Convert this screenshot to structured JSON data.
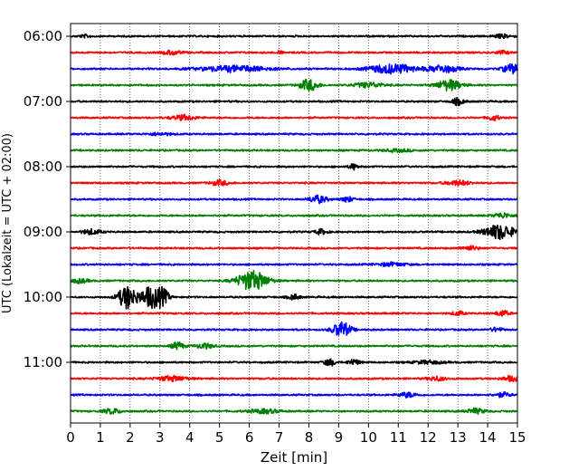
{
  "chart_data": {
    "type": "line",
    "xlabel": "Zeit  [min]",
    "ylabel": "UTC (Lokalzeit = UTC + 02:00)",
    "xlim": [
      0,
      15
    ],
    "x_ticks": [
      "0",
      "1",
      "2",
      "3",
      "4",
      "5",
      "6",
      "7",
      "8",
      "9",
      "10",
      "11",
      "12",
      "13",
      "14",
      "15"
    ],
    "y_ticks": [
      "06:00",
      "07:00",
      "08:00",
      "09:00",
      "10:00",
      "11:00"
    ],
    "grid": "vertical dotted at each minute",
    "start_time": "06:00",
    "trace_interval_min": 15,
    "color_cycle": [
      "#000000",
      "#ff0000",
      "#0000ff",
      "#008000"
    ],
    "traces": [
      {
        "time": "06:00",
        "color": "#000000",
        "events": [
          {
            "t": 0.5,
            "a": 0.15,
            "w": 0.2
          },
          {
            "t": 14.5,
            "a": 0.2,
            "w": 0.3
          }
        ]
      },
      {
        "time": "06:15",
        "color": "#ff0000",
        "events": [
          {
            "t": 3.4,
            "a": 0.25,
            "w": 0.3
          },
          {
            "t": 7.0,
            "a": 0.2,
            "w": 0.1
          },
          {
            "t": 14.5,
            "a": 0.2,
            "w": 0.2
          }
        ]
      },
      {
        "time": "06:30",
        "color": "#0000ff",
        "events": [
          {
            "t": 5.5,
            "a": 0.35,
            "w": 1.2
          },
          {
            "t": 10.8,
            "a": 0.55,
            "w": 0.8
          },
          {
            "t": 12.5,
            "a": 0.45,
            "w": 0.5
          },
          {
            "t": 14.8,
            "a": 0.55,
            "w": 0.3
          }
        ]
      },
      {
        "time": "06:45",
        "color": "#008000",
        "events": [
          {
            "t": 8.0,
            "a": 0.7,
            "w": 0.3
          },
          {
            "t": 10.0,
            "a": 0.3,
            "w": 0.5
          },
          {
            "t": 12.7,
            "a": 0.65,
            "w": 0.4
          }
        ]
      },
      {
        "time": "07:00",
        "color": "#000000",
        "events": [
          {
            "t": 13.0,
            "a": 0.4,
            "w": 0.2
          }
        ]
      },
      {
        "time": "07:15",
        "color": "#ff0000",
        "events": [
          {
            "t": 3.8,
            "a": 0.3,
            "w": 0.4
          },
          {
            "t": 14.2,
            "a": 0.3,
            "w": 0.2
          }
        ]
      },
      {
        "time": "07:30",
        "color": "#0000ff",
        "events": [
          {
            "t": 3.0,
            "a": 0.15,
            "w": 0.4
          }
        ]
      },
      {
        "time": "07:45",
        "color": "#008000",
        "events": [
          {
            "t": 11.0,
            "a": 0.15,
            "w": 0.5
          }
        ]
      },
      {
        "time": "08:00",
        "color": "#000000",
        "events": [
          {
            "t": 9.5,
            "a": 0.35,
            "w": 0.15
          }
        ]
      },
      {
        "time": "08:15",
        "color": "#ff0000",
        "events": [
          {
            "t": 5.0,
            "a": 0.3,
            "w": 0.3
          },
          {
            "t": 13.0,
            "a": 0.3,
            "w": 0.4
          }
        ]
      },
      {
        "time": "08:30",
        "color": "#0000ff",
        "events": [
          {
            "t": 8.3,
            "a": 0.45,
            "w": 0.3
          },
          {
            "t": 9.3,
            "a": 0.3,
            "w": 0.2
          }
        ]
      },
      {
        "time": "08:45",
        "color": "#008000",
        "events": [
          {
            "t": 14.5,
            "a": 0.3,
            "w": 0.3
          }
        ]
      },
      {
        "time": "09:00",
        "color": "#000000",
        "events": [
          {
            "t": 0.7,
            "a": 0.3,
            "w": 0.3
          },
          {
            "t": 8.4,
            "a": 0.3,
            "w": 0.2
          },
          {
            "t": 14.4,
            "a": 0.9,
            "w": 0.5
          }
        ]
      },
      {
        "time": "09:15",
        "color": "#ff0000",
        "events": [
          {
            "t": 13.4,
            "a": 0.25,
            "w": 0.3
          }
        ]
      },
      {
        "time": "09:30",
        "color": "#0000ff",
        "events": [
          {
            "t": 10.8,
            "a": 0.2,
            "w": 0.5
          }
        ]
      },
      {
        "time": "09:45",
        "color": "#008000",
        "events": [
          {
            "t": 0.3,
            "a": 0.25,
            "w": 0.3
          },
          {
            "t": 6.1,
            "a": 1.2,
            "w": 0.5
          }
        ]
      },
      {
        "time": "10:00",
        "color": "#000000",
        "events": [
          {
            "t": 1.9,
            "a": 1.4,
            "w": 0.3
          },
          {
            "t": 2.7,
            "a": 1.3,
            "w": 0.35
          },
          {
            "t": 3.1,
            "a": 0.8,
            "w": 0.2
          },
          {
            "t": 7.5,
            "a": 0.3,
            "w": 0.2
          }
        ]
      },
      {
        "time": "10:15",
        "color": "#ff0000",
        "events": [
          {
            "t": 13.0,
            "a": 0.25,
            "w": 0.2
          },
          {
            "t": 14.5,
            "a": 0.35,
            "w": 0.2
          }
        ]
      },
      {
        "time": "10:30",
        "color": "#0000ff",
        "events": [
          {
            "t": 9.1,
            "a": 0.95,
            "w": 0.3
          },
          {
            "t": 14.3,
            "a": 0.25,
            "w": 0.2
          }
        ]
      },
      {
        "time": "10:45",
        "color": "#008000",
        "events": [
          {
            "t": 3.6,
            "a": 0.45,
            "w": 0.2
          },
          {
            "t": 4.5,
            "a": 0.3,
            "w": 0.3
          }
        ]
      },
      {
        "time": "11:00",
        "color": "#000000",
        "events": [
          {
            "t": 8.7,
            "a": 0.4,
            "w": 0.2
          },
          {
            "t": 9.5,
            "a": 0.35,
            "w": 0.2
          },
          {
            "t": 12.0,
            "a": 0.2,
            "w": 0.5
          }
        ]
      },
      {
        "time": "11:15",
        "color": "#ff0000",
        "events": [
          {
            "t": 3.4,
            "a": 0.3,
            "w": 0.5
          },
          {
            "t": 12.3,
            "a": 0.25,
            "w": 0.3
          },
          {
            "t": 14.8,
            "a": 0.3,
            "w": 0.3
          }
        ]
      },
      {
        "time": "11:30",
        "color": "#0000ff",
        "events": [
          {
            "t": 11.3,
            "a": 0.3,
            "w": 0.3
          },
          {
            "t": 14.5,
            "a": 0.25,
            "w": 0.3
          }
        ]
      },
      {
        "time": "11:45",
        "color": "#008000",
        "events": [
          {
            "t": 1.4,
            "a": 0.3,
            "w": 0.3
          },
          {
            "t": 6.5,
            "a": 0.25,
            "w": 0.5
          },
          {
            "t": 13.6,
            "a": 0.3,
            "w": 0.3
          }
        ]
      }
    ]
  }
}
